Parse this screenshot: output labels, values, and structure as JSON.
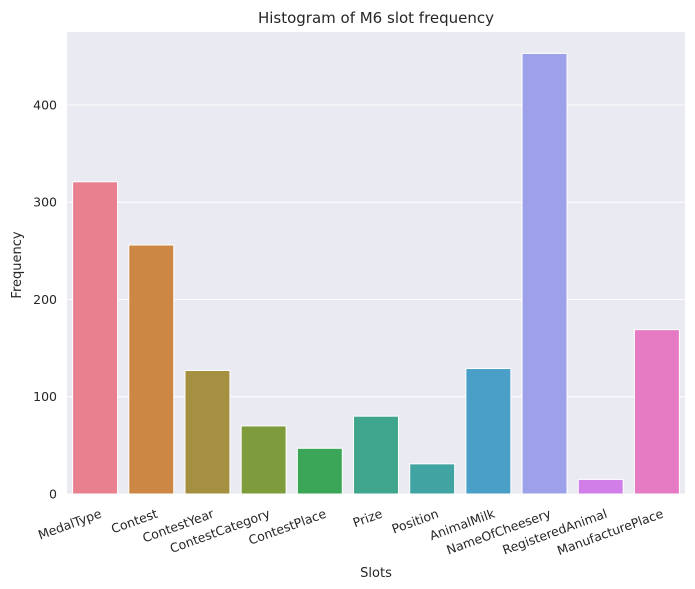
{
  "chart_data": {
    "type": "bar",
    "title": "Histogram of M6 slot frequency",
    "xlabel": "Slots",
    "ylabel": "Frequency",
    "categories": [
      "MedalType",
      "Contest",
      "ContestYear",
      "ContestCategory",
      "ContestPlace",
      "Prize",
      "Position",
      "AnimalMilk",
      "NameOfCheesery",
      "RegisteredAnimal",
      "ManufacturePlace"
    ],
    "values": [
      321,
      256,
      127,
      70,
      47,
      80,
      31,
      129,
      453,
      15,
      169
    ],
    "colors": [
      "#e8808f",
      "#cc8744",
      "#a49040",
      "#7f9c3c",
      "#3ba558",
      "#3fa58c",
      "#41a4a3",
      "#4a9fc8",
      "#9ca1e9",
      "#d17ee8",
      "#e67bc3"
    ],
    "yticks": [
      0,
      100,
      200,
      300,
      400
    ],
    "ylim": [
      0,
      475
    ],
    "grid": true,
    "background": "#eaeaf2"
  }
}
